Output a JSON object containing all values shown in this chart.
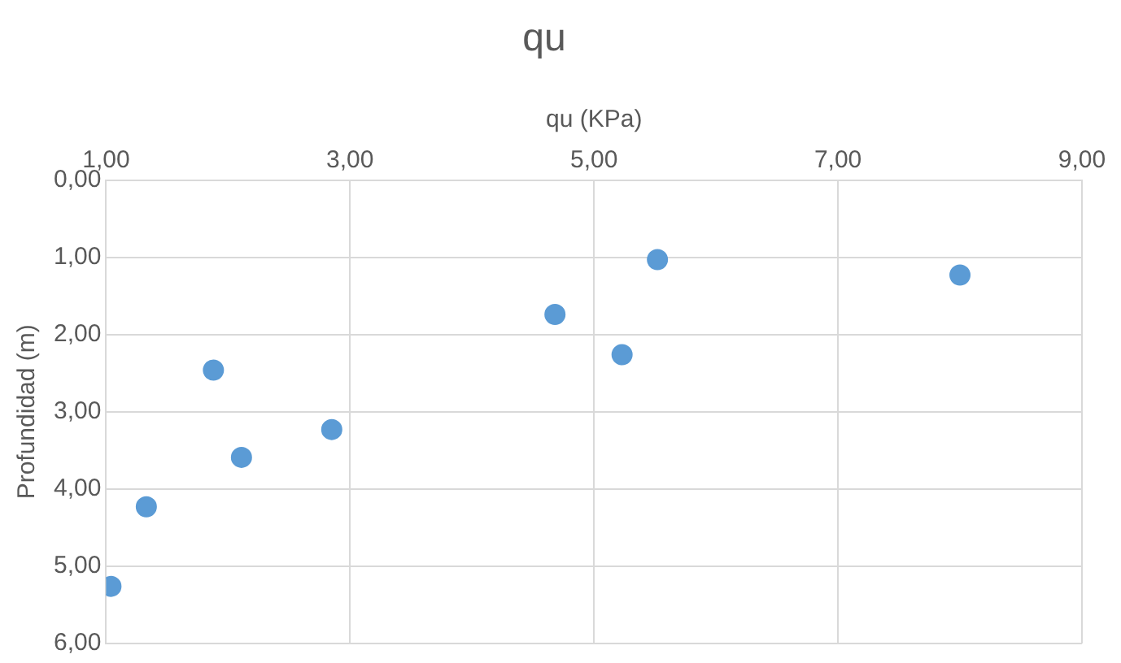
{
  "chart_data": {
    "type": "scatter",
    "title": "qu",
    "xlabel": "qu (KPa)",
    "ylabel": "Profundidad (m)",
    "x": [
      1.04,
      1.33,
      1.88,
      2.11,
      2.85,
      4.68,
      5.23,
      5.52,
      8.0
    ],
    "values": [
      5.26,
      4.23,
      2.46,
      3.59,
      3.23,
      1.74,
      2.26,
      1.03,
      1.23
    ],
    "color": "#5b9bd5",
    "marker": "circle",
    "grid": true,
    "legend": false,
    "xlim": [
      1,
      9
    ],
    "xticks": [
      {
        "value": 1,
        "label": "1,00"
      },
      {
        "value": 3,
        "label": "3,00"
      },
      {
        "value": 5,
        "label": "5,00"
      },
      {
        "value": 7,
        "label": "7,00"
      },
      {
        "value": 9,
        "label": "9,00"
      }
    ],
    "ylim": [
      6,
      0
    ],
    "yticks": [
      {
        "value": 0,
        "label": "0,00"
      },
      {
        "value": 1,
        "label": "1,00"
      },
      {
        "value": 2,
        "label": "2,00"
      },
      {
        "value": 3,
        "label": "3,00"
      },
      {
        "value": 4,
        "label": "4,00"
      },
      {
        "value": 5,
        "label": "5,00"
      },
      {
        "value": 6,
        "label": "6,00"
      }
    ]
  }
}
